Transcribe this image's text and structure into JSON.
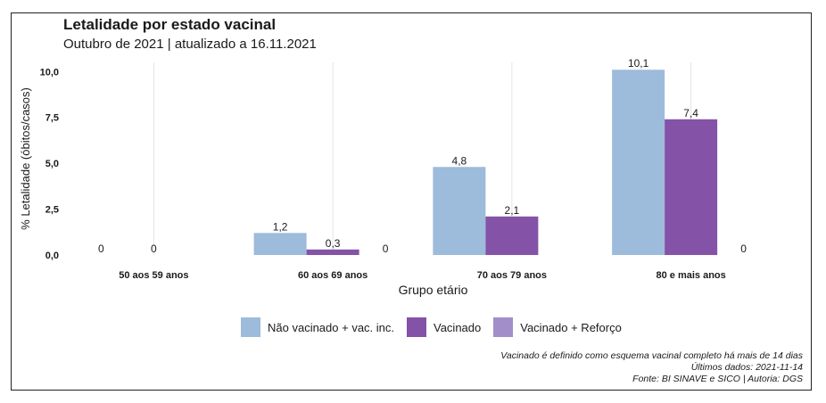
{
  "chart_data": {
    "type": "bar",
    "title": "Letalidade por estado vacinal",
    "subtitle": "Outubro de 2021 | atualizado a 16.11.2021",
    "xlabel": "Grupo etário",
    "ylabel": "% Letalidade (óbitos/casos)",
    "ylim": [
      0,
      10.5
    ],
    "yticks": [
      "0,0",
      "2,5",
      "5,0",
      "7,5",
      "10,0"
    ],
    "ytick_values": [
      0,
      2.5,
      5,
      7.5,
      10
    ],
    "grid": "vertical",
    "legend_position": "bottom",
    "categories": [
      "50 aos 59 anos",
      "60 aos 69 anos",
      "70 aos 79 anos",
      "80 e mais anos"
    ],
    "series": [
      {
        "name": "Não vacinado + vac. inc.",
        "color": "#9dbbdb",
        "values": [
          0,
          1.2,
          4.8,
          10.1
        ],
        "labels": [
          "0",
          "1,2",
          "4,8",
          "10,1"
        ]
      },
      {
        "name": "Vacinado",
        "color": "#8452a7",
        "values": [
          0,
          0.3,
          2.1,
          7.4
        ],
        "labels": [
          "0",
          "0,3",
          "2,1",
          "7,4"
        ]
      },
      {
        "name": "Vacinado + Reforço",
        "color": "#a28fc9",
        "values": [
          null,
          0,
          null,
          0
        ],
        "labels": [
          "",
          "0",
          "",
          "0"
        ]
      }
    ]
  },
  "notes": [
    "Vacinado é definido como esquema vacinal completo há mais de 14 dias",
    "Últimos dados: 2021-11-14",
    "Fonte: BI SINAVE e SICO | Autoria: DGS"
  ]
}
